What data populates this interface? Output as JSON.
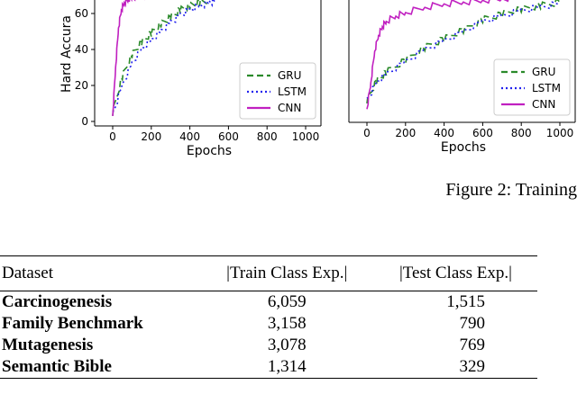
{
  "figure": {
    "caption": "Figure 2: Training",
    "colors": {
      "GRU": "#2a8a2a",
      "LSTM": "#2222ee",
      "CNN": "#c020c0"
    }
  },
  "chart_data": [
    {
      "type": "line",
      "ylabel": "Hard Accura",
      "xlabel": "Epochs",
      "xlim": [
        0,
        1000
      ],
      "ylim": [
        0,
        70
      ],
      "xticks": [
        0,
        200,
        400,
        600,
        800,
        1000
      ],
      "yticks": [
        0,
        20,
        40,
        60
      ],
      "legend_position": "bottom-right",
      "series": [
        {
          "name": "GRU",
          "x": [
            0,
            50,
            100,
            150,
            200,
            250,
            300,
            350,
            400,
            450,
            500
          ],
          "y": [
            5,
            25,
            37,
            44,
            49,
            54,
            58,
            62,
            64,
            66,
            68
          ]
        },
        {
          "name": "LSTM",
          "x": [
            0,
            50,
            100,
            150,
            200,
            250,
            300,
            350,
            400,
            450,
            500,
            530
          ],
          "y": [
            4,
            20,
            32,
            40,
            45,
            50,
            55,
            59,
            62,
            64,
            66,
            67
          ]
        },
        {
          "name": "CNN",
          "x": [
            0,
            15,
            30,
            45,
            60,
            80,
            100,
            150,
            200
          ],
          "y": [
            3,
            30,
            52,
            62,
            66,
            68,
            69,
            70,
            70
          ]
        }
      ]
    },
    {
      "type": "line",
      "ylabel": "",
      "xlabel": "Epochs",
      "xlim": [
        0,
        1000
      ],
      "ylim": [
        0,
        70
      ],
      "xticks": [
        0,
        200,
        400,
        600,
        800,
        1000
      ],
      "legend_position": "bottom-right",
      "series": [
        {
          "name": "GRU",
          "x": [
            0,
            50,
            100,
            200,
            300,
            400,
            500,
            600,
            700,
            800,
            900,
            1000
          ],
          "y": [
            10,
            21,
            26,
            33,
            40,
            45,
            50,
            56,
            59,
            62,
            64,
            66
          ]
        },
        {
          "name": "LSTM",
          "x": [
            0,
            50,
            100,
            200,
            300,
            400,
            500,
            600,
            700,
            800,
            900,
            1000
          ],
          "y": [
            10,
            20,
            25,
            32,
            39,
            44,
            49,
            55,
            58,
            61,
            63,
            65
          ]
        },
        {
          "name": "CNN",
          "x": [
            0,
            20,
            40,
            60,
            80,
            100,
            150,
            200,
            300,
            400,
            500,
            600,
            700,
            800
          ],
          "y": [
            5,
            20,
            38,
            47,
            52,
            55,
            58,
            60,
            63,
            65,
            66,
            67,
            68,
            69
          ]
        }
      ]
    }
  ],
  "table": {
    "headers": [
      "Dataset",
      "|Train Class Exp.|",
      "|Test Class Exp.|"
    ],
    "rows": [
      {
        "dataset": "Carcinogenesis",
        "train": "6,059",
        "test": "1,515"
      },
      {
        "dataset": "Family Benchmark",
        "train": "3,158",
        "test": "790"
      },
      {
        "dataset": "Mutagenesis",
        "train": "3,078",
        "test": "769"
      },
      {
        "dataset": "Semantic Bible",
        "train": "1,314",
        "test": "329"
      }
    ]
  }
}
